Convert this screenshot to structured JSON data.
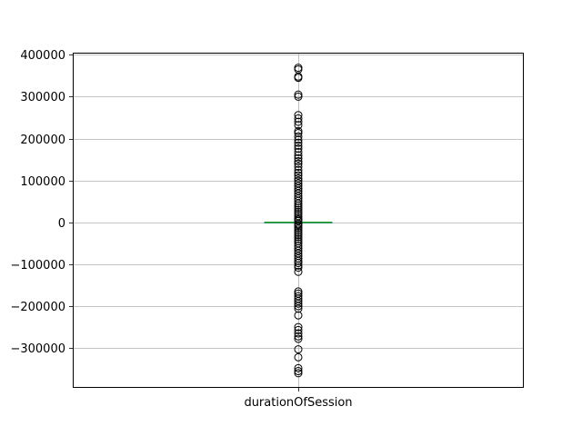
{
  "chart_data": {
    "type": "box",
    "categories": [
      "durationOfSession"
    ],
    "ylim": [
      -395000,
      405000
    ],
    "yticks": [
      400000,
      300000,
      200000,
      100000,
      0,
      -100000,
      -200000,
      -300000
    ],
    "ytick_labels": [
      "400000",
      "300000",
      "200000",
      "100000",
      "0",
      "−100000",
      "−200000",
      "−300000"
    ],
    "grid": true,
    "box": {
      "q1": -300,
      "median": 0,
      "q3": 300,
      "whisker_low": -1000,
      "whisker_high": 1000
    },
    "outliers": [
      369000,
      365000,
      348000,
      345000,
      305000,
      300000,
      256000,
      248000,
      240000,
      232000,
      218000,
      213000,
      205000,
      197000,
      190000,
      183000,
      176000,
      168000,
      160000,
      153000,
      146000,
      140000,
      133000,
      125000,
      118000,
      112000,
      105000,
      99000,
      93000,
      87000,
      81000,
      75000,
      69000,
      63000,
      57000,
      51000,
      45000,
      40000,
      35000,
      30000,
      25000,
      20000,
      15000,
      10000,
      6000,
      3000,
      -3000,
      -6000,
      -10000,
      -15000,
      -20000,
      -25000,
      -30000,
      -35000,
      -40000,
      -45000,
      -50000,
      -56000,
      -62000,
      -68000,
      -74000,
      -80000,
      -86000,
      -92000,
      -97000,
      -103000,
      -108000,
      -118000,
      -165000,
      -170000,
      -176000,
      -182000,
      -188000,
      -194000,
      -200000,
      -206000,
      -222000,
      -250000,
      -257000,
      -265000,
      -272000,
      -278000,
      -303000,
      -322000,
      -348000,
      -355000,
      -360000
    ],
    "colors": {
      "median": "#2ca02c",
      "box": "#1f77b4",
      "grid": "#b0b0b0",
      "outlier_edge": "#000000"
    }
  }
}
